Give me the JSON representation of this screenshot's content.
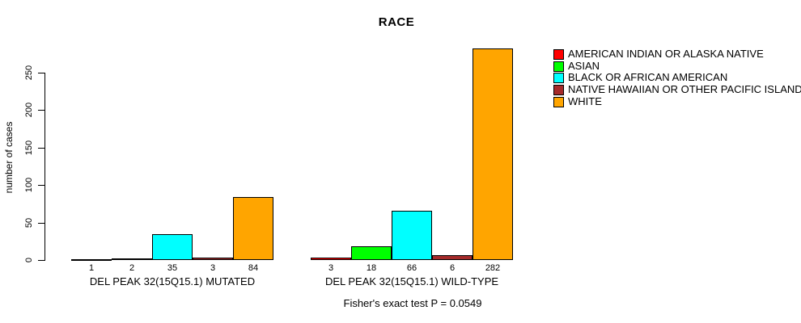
{
  "chart_data": {
    "type": "bar",
    "title": "RACE",
    "ylabel": "number of cases",
    "xlabel": "",
    "ylim": [
      0,
      250
    ],
    "yticks": [
      0,
      50,
      100,
      150,
      200,
      250
    ],
    "grid": false,
    "legend_position": "right",
    "categories": [
      "AMERICAN INDIAN OR ALASKA NATIVE",
      "ASIAN",
      "BLACK OR AFRICAN AMERICAN",
      "NATIVE HAWAIIAN OR OTHER PACIFIC ISLANDER",
      "WHITE"
    ],
    "colors": [
      "#FF0000",
      "#00FF00",
      "#00FFFF",
      "#A52A2A",
      "#FFA500"
    ],
    "groups": [
      {
        "label": "DEL PEAK 32(15Q15.1) MUTATED",
        "values": [
          1,
          2,
          35,
          3,
          84
        ]
      },
      {
        "label": "DEL PEAK 32(15Q15.1) WILD-TYPE",
        "values": [
          3,
          18,
          66,
          6,
          282
        ]
      }
    ],
    "annotation": "Fisher's exact test P = 0.0549",
    "axis_color": "#000000",
    "background_color": "#FFFFFF"
  }
}
